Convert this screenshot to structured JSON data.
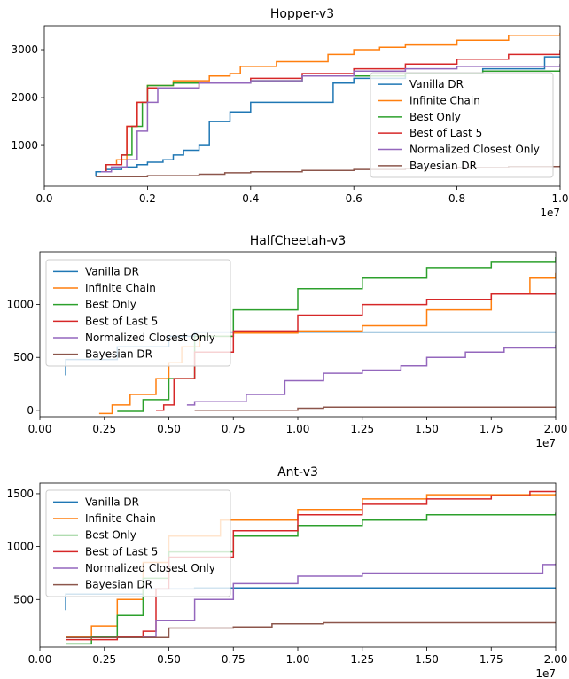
{
  "chart_data": [
    {
      "type": "line",
      "title": "Hopper-v3",
      "xlabel": "",
      "ylabel": "",
      "x_offset_label": "1e7",
      "xlim": [
        0.0,
        1.0
      ],
      "ylim": [
        150,
        3500
      ],
      "x_ticks": [
        0.0,
        0.2,
        0.4,
        0.6,
        0.8,
        1.0
      ],
      "x_tick_labels": [
        "0.0",
        "0.2",
        "0.4",
        "0.6",
        "0.8",
        "1.0"
      ],
      "y_ticks": [
        1000,
        2000,
        3000
      ],
      "y_tick_labels": [
        "1000",
        "2000",
        "3000"
      ],
      "legend": "lower-right",
      "grid": false,
      "series": [
        {
          "name": "Vanilla DR",
          "color": "#1f77b4",
          "points": [
            [
              0.1,
              350
            ],
            [
              0.1,
              450
            ],
            [
              0.12,
              450
            ],
            [
              0.12,
              500
            ],
            [
              0.15,
              500
            ],
            [
              0.15,
              550
            ],
            [
              0.18,
              550
            ],
            [
              0.18,
              600
            ],
            [
              0.2,
              600
            ],
            [
              0.2,
              650
            ],
            [
              0.23,
              650
            ],
            [
              0.23,
              700
            ],
            [
              0.25,
              700
            ],
            [
              0.25,
              800
            ],
            [
              0.27,
              800
            ],
            [
              0.27,
              900
            ],
            [
              0.3,
              900
            ],
            [
              0.3,
              1000
            ],
            [
              0.32,
              1000
            ],
            [
              0.32,
              1500
            ],
            [
              0.36,
              1500
            ],
            [
              0.36,
              1700
            ],
            [
              0.4,
              1700
            ],
            [
              0.4,
              1900
            ],
            [
              0.56,
              1900
            ],
            [
              0.56,
              2300
            ],
            [
              0.6,
              2300
            ],
            [
              0.6,
              2400
            ],
            [
              0.7,
              2400
            ],
            [
              0.7,
              2500
            ],
            [
              0.85,
              2500
            ],
            [
              0.85,
              2600
            ],
            [
              0.97,
              2600
            ],
            [
              0.97,
              2850
            ],
            [
              1.0,
              2850
            ]
          ]
        },
        {
          "name": "Infinite Chain",
          "color": "#ff7f0e",
          "points": [
            [
              0.11,
              450
            ],
            [
              0.12,
              600
            ],
            [
              0.14,
              700
            ],
            [
              0.16,
              1400
            ],
            [
              0.18,
              1900
            ],
            [
              0.2,
              2250
            ],
            [
              0.25,
              2350
            ],
            [
              0.32,
              2450
            ],
            [
              0.36,
              2500
            ],
            [
              0.38,
              2650
            ],
            [
              0.45,
              2750
            ],
            [
              0.55,
              2900
            ],
            [
              0.6,
              3000
            ],
            [
              0.65,
              3050
            ],
            [
              0.7,
              3100
            ],
            [
              0.8,
              3200
            ],
            [
              0.9,
              3300
            ],
            [
              1.0,
              3350
            ]
          ]
        },
        {
          "name": "Best Only",
          "color": "#2ca02c",
          "points": [
            [
              0.11,
              450
            ],
            [
              0.12,
              600
            ],
            [
              0.15,
              800
            ],
            [
              0.17,
              1400
            ],
            [
              0.19,
              1900
            ],
            [
              0.2,
              2250
            ],
            [
              0.25,
              2300
            ],
            [
              0.35,
              2300
            ],
            [
              0.4,
              2350
            ],
            [
              0.5,
              2350
            ],
            [
              0.5,
              2450
            ],
            [
              0.7,
              2500
            ],
            [
              0.85,
              2550
            ],
            [
              1.0,
              2600
            ]
          ]
        },
        {
          "name": "Best of Last 5",
          "color": "#d62728",
          "points": [
            [
              0.11,
              450
            ],
            [
              0.12,
              600
            ],
            [
              0.15,
              800
            ],
            [
              0.16,
              1400
            ],
            [
              0.18,
              1900
            ],
            [
              0.2,
              2200
            ],
            [
              0.3,
              2300
            ],
            [
              0.4,
              2400
            ],
            [
              0.5,
              2500
            ],
            [
              0.6,
              2600
            ],
            [
              0.7,
              2700
            ],
            [
              0.8,
              2800
            ],
            [
              0.9,
              2900
            ],
            [
              1.0,
              3000
            ]
          ]
        },
        {
          "name": "Normalized Closest Only",
          "color": "#9467bd",
          "points": [
            [
              0.11,
              450
            ],
            [
              0.13,
              550
            ],
            [
              0.16,
              700
            ],
            [
              0.18,
              1300
            ],
            [
              0.2,
              1900
            ],
            [
              0.22,
              2200
            ],
            [
              0.3,
              2300
            ],
            [
              0.4,
              2350
            ],
            [
              0.5,
              2450
            ],
            [
              0.6,
              2550
            ],
            [
              0.7,
              2600
            ],
            [
              0.8,
              2650
            ],
            [
              1.0,
              2700
            ]
          ]
        },
        {
          "name": "Bayesian DR",
          "color": "#8c564b",
          "points": [
            [
              0.1,
              350
            ],
            [
              0.2,
              370
            ],
            [
              0.3,
              400
            ],
            [
              0.35,
              430
            ],
            [
              0.4,
              450
            ],
            [
              0.5,
              480
            ],
            [
              0.6,
              500
            ],
            [
              0.7,
              520
            ],
            [
              0.8,
              540
            ],
            [
              0.9,
              560
            ],
            [
              1.0,
              580
            ]
          ]
        }
      ]
    },
    {
      "type": "line",
      "title": "HalfCheetah-v3",
      "xlabel": "",
      "ylabel": "",
      "x_offset_label": "1e7",
      "xlim": [
        0.0,
        2.0
      ],
      "ylim": [
        -60,
        1500
      ],
      "x_ticks": [
        0.0,
        0.25,
        0.5,
        0.75,
        1.0,
        1.25,
        1.5,
        1.75,
        2.0
      ],
      "x_tick_labels": [
        "0.00",
        "0.25",
        "0.50",
        "0.75",
        "1.00",
        "1.25",
        "1.50",
        "1.75",
        "2.00"
      ],
      "y_ticks": [
        0,
        500,
        1000
      ],
      "y_tick_labels": [
        "0",
        "500",
        "1000"
      ],
      "legend": "upper-left",
      "grid": false,
      "series": [
        {
          "name": "Vanilla DR",
          "color": "#1f77b4",
          "points": [
            [
              0.1,
              330
            ],
            [
              0.1,
              480
            ],
            [
              0.3,
              600
            ],
            [
              0.5,
              700
            ],
            [
              0.6,
              740
            ],
            [
              2.0,
              740
            ]
          ]
        },
        {
          "name": "Infinite Chain",
          "color": "#ff7f0e",
          "points": [
            [
              0.23,
              -30
            ],
            [
              0.28,
              50
            ],
            [
              0.35,
              150
            ],
            [
              0.45,
              300
            ],
            [
              0.5,
              450
            ],
            [
              0.55,
              600
            ],
            [
              0.62,
              700
            ],
            [
              0.75,
              730
            ],
            [
              1.0,
              750
            ],
            [
              1.25,
              800
            ],
            [
              1.5,
              950
            ],
            [
              1.75,
              1100
            ],
            [
              1.9,
              1250
            ],
            [
              2.0,
              1300
            ]
          ]
        },
        {
          "name": "Best Only",
          "color": "#2ca02c",
          "points": [
            [
              0.3,
              -10
            ],
            [
              0.4,
              100
            ],
            [
              0.5,
              300
            ],
            [
              0.6,
              700
            ],
            [
              0.75,
              950
            ],
            [
              1.0,
              1150
            ],
            [
              1.25,
              1250
            ],
            [
              1.5,
              1350
            ],
            [
              1.75,
              1400
            ],
            [
              2.0,
              1450
            ]
          ]
        },
        {
          "name": "Best of Last 5",
          "color": "#d62728",
          "points": [
            [
              0.45,
              0
            ],
            [
              0.48,
              50
            ],
            [
              0.52,
              300
            ],
            [
              0.6,
              550
            ],
            [
              0.75,
              750
            ],
            [
              1.0,
              900
            ],
            [
              1.25,
              1000
            ],
            [
              1.5,
              1050
            ],
            [
              1.75,
              1100
            ],
            [
              2.0,
              1100
            ]
          ]
        },
        {
          "name": "Normalized Closest Only",
          "color": "#9467bd",
          "points": [
            [
              0.57,
              50
            ],
            [
              0.6,
              80
            ],
            [
              0.8,
              150
            ],
            [
              0.95,
              280
            ],
            [
              1.1,
              350
            ],
            [
              1.25,
              380
            ],
            [
              1.4,
              420
            ],
            [
              1.5,
              500
            ],
            [
              1.65,
              550
            ],
            [
              1.8,
              590
            ],
            [
              2.0,
              620
            ]
          ]
        },
        {
          "name": "Bayesian DR",
          "color": "#8c564b",
          "points": [
            [
              0.6,
              0
            ],
            [
              1.0,
              20
            ],
            [
              1.1,
              30
            ],
            [
              2.0,
              30
            ]
          ]
        }
      ]
    },
    {
      "type": "line",
      "title": "Ant-v3",
      "xlabel": "",
      "ylabel": "",
      "x_offset_label": "1e7",
      "xlim": [
        0.0,
        2.0
      ],
      "ylim": [
        50,
        1600
      ],
      "x_ticks": [
        0.0,
        0.25,
        0.5,
        0.75,
        1.0,
        1.25,
        1.5,
        1.75,
        2.0
      ],
      "x_tick_labels": [
        "0.00",
        "0.25",
        "0.50",
        "0.75",
        "1.00",
        "1.25",
        "1.50",
        "1.75",
        "2.00"
      ],
      "y_ticks": [
        500,
        1000,
        1500
      ],
      "y_tick_labels": [
        "500",
        "1000",
        "1500"
      ],
      "legend": "upper-left",
      "grid": false,
      "series": [
        {
          "name": "Vanilla DR",
          "color": "#1f77b4",
          "points": [
            [
              0.1,
              400
            ],
            [
              0.1,
              550
            ],
            [
              0.4,
              600
            ],
            [
              0.6,
              610
            ],
            [
              2.0,
              610
            ]
          ]
        },
        {
          "name": "Infinite Chain",
          "color": "#ff7f0e",
          "points": [
            [
              0.1,
              150
            ],
            [
              0.2,
              250
            ],
            [
              0.3,
              500
            ],
            [
              0.4,
              850
            ],
            [
              0.5,
              1100
            ],
            [
              0.7,
              1250
            ],
            [
              1.0,
              1350
            ],
            [
              1.25,
              1450
            ],
            [
              1.5,
              1490
            ],
            [
              2.0,
              1500
            ]
          ]
        },
        {
          "name": "Best Only",
          "color": "#2ca02c",
          "points": [
            [
              0.1,
              80
            ],
            [
              0.2,
              150
            ],
            [
              0.3,
              350
            ],
            [
              0.4,
              700
            ],
            [
              0.5,
              950
            ],
            [
              0.75,
              1100
            ],
            [
              1.0,
              1200
            ],
            [
              1.25,
              1250
            ],
            [
              1.5,
              1300
            ],
            [
              2.0,
              1320
            ]
          ]
        },
        {
          "name": "Best of Last 5",
          "color": "#d62728",
          "points": [
            [
              0.1,
              120
            ],
            [
              0.3,
              150
            ],
            [
              0.4,
              200
            ],
            [
              0.45,
              600
            ],
            [
              0.5,
              900
            ],
            [
              0.75,
              1150
            ],
            [
              1.0,
              1300
            ],
            [
              1.25,
              1400
            ],
            [
              1.5,
              1450
            ],
            [
              1.75,
              1480
            ],
            [
              1.9,
              1520
            ],
            [
              2.0,
              1520
            ]
          ]
        },
        {
          "name": "Normalized Closest Only",
          "color": "#9467bd",
          "points": [
            [
              0.1,
              140
            ],
            [
              0.4,
              150
            ],
            [
              0.45,
              300
            ],
            [
              0.6,
              500
            ],
            [
              0.75,
              650
            ],
            [
              1.0,
              720
            ],
            [
              1.25,
              750
            ],
            [
              1.5,
              750
            ],
            [
              1.75,
              750
            ],
            [
              1.95,
              830
            ],
            [
              2.0,
              840
            ]
          ]
        },
        {
          "name": "Bayesian DR",
          "color": "#8c564b",
          "points": [
            [
              0.1,
              140
            ],
            [
              0.5,
              230
            ],
            [
              0.75,
              240
            ],
            [
              0.9,
              270
            ],
            [
              1.1,
              280
            ],
            [
              2.0,
              280
            ]
          ]
        }
      ]
    }
  ]
}
